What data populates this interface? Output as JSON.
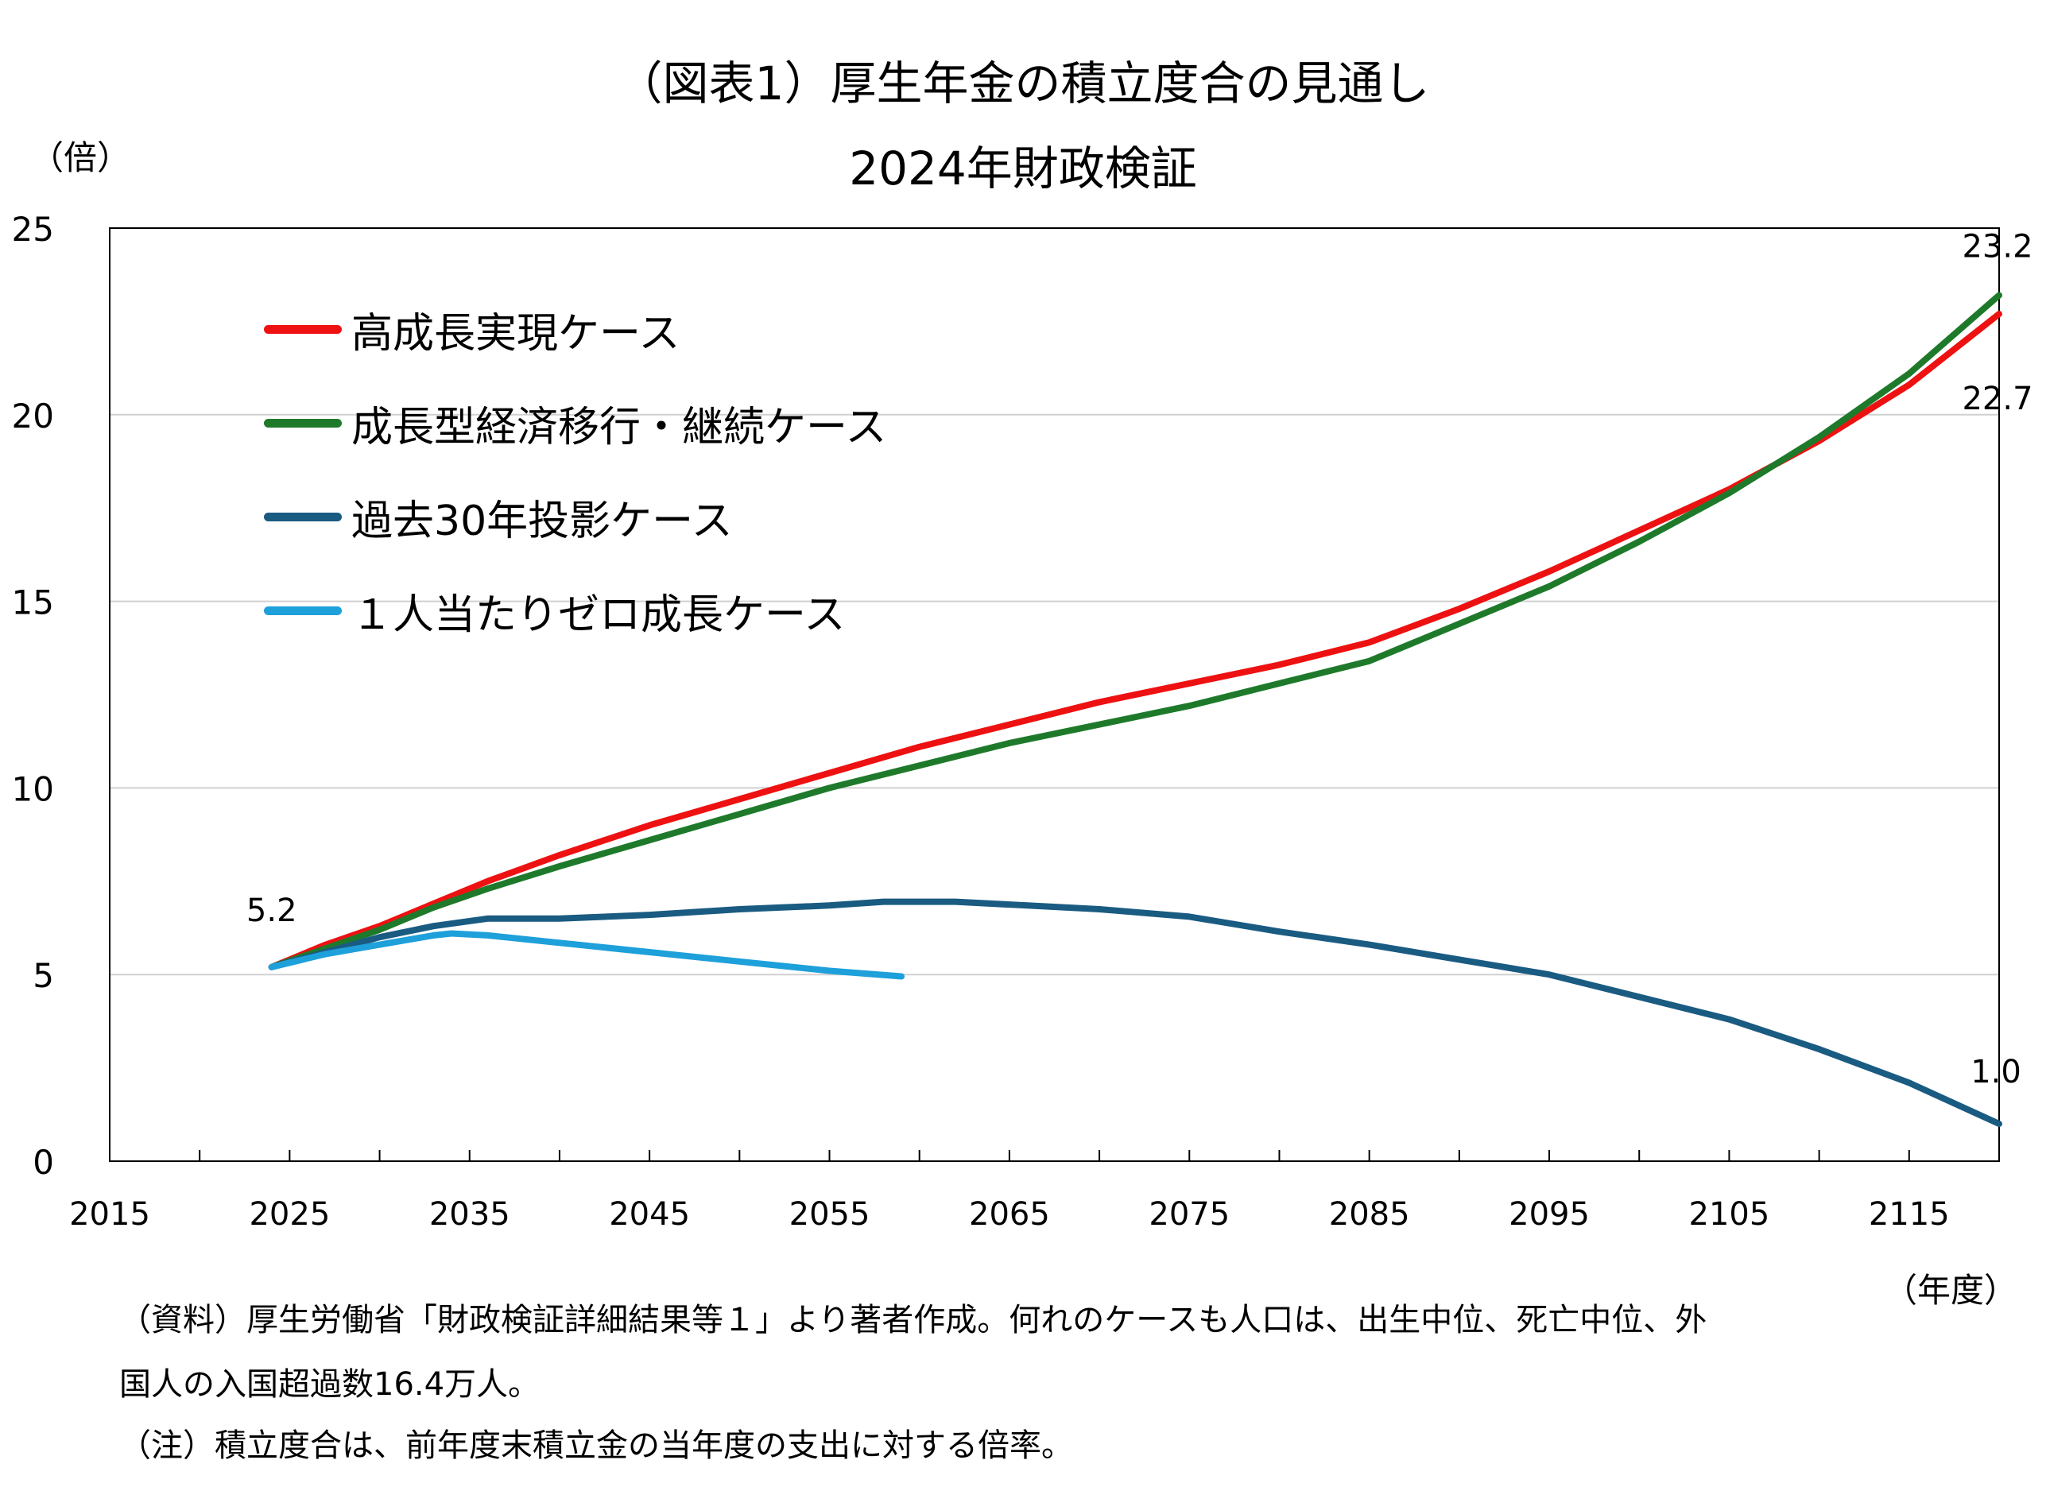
{
  "title": "（図表1）厚生年金の積立度合の見通し",
  "subtitle": "2024年財政検証",
  "y_unit": "（倍）",
  "x_unit": "（年度）",
  "notes": {
    "source_line1": "（資料）厚生労働省「財政検証詳細結果等１」より著者作成。何れのケースも人口は、出生中位、死亡中位、外",
    "source_line2": "国人の入国超過数16.4万人。",
    "note": "（注）積立度合は、前年度末積立金の当年度の支出に対する倍率。"
  },
  "chart_data": {
    "type": "line",
    "title": "（図表1）厚生年金の積立度合の見通し",
    "subtitle": "2024年財政検証",
    "xlabel": "（年度）",
    "ylabel": "（倍）",
    "xlim": [
      2015,
      2120
    ],
    "ylim": [
      0,
      25
    ],
    "x_ticks": [
      2015,
      2025,
      2035,
      2045,
      2055,
      2065,
      2075,
      2085,
      2095,
      2105,
      2115
    ],
    "y_ticks": [
      0,
      5,
      10,
      15,
      20,
      25
    ],
    "grid": true,
    "legend_position": "top-left",
    "series": [
      {
        "name": "高成長実現ケース",
        "color": "#ee1111",
        "x": [
          2024,
          2027,
          2030,
          2033,
          2036,
          2040,
          2045,
          2050,
          2055,
          2060,
          2065,
          2070,
          2075,
          2080,
          2085,
          2090,
          2095,
          2100,
          2105,
          2110,
          2115,
          2120
        ],
        "y": [
          5.2,
          5.8,
          6.3,
          6.9,
          7.5,
          8.2,
          9.0,
          9.7,
          10.4,
          11.1,
          11.7,
          12.3,
          12.8,
          13.3,
          13.9,
          14.8,
          15.8,
          16.9,
          18.0,
          19.3,
          20.8,
          22.7
        ]
      },
      {
        "name": "成長型経済移行・継続ケース",
        "color": "#1e7a2a",
        "x": [
          2024,
          2027,
          2030,
          2033,
          2036,
          2040,
          2045,
          2050,
          2055,
          2060,
          2065,
          2070,
          2075,
          2080,
          2085,
          2090,
          2095,
          2100,
          2105,
          2110,
          2115,
          2120
        ],
        "y": [
          5.2,
          5.7,
          6.2,
          6.8,
          7.3,
          7.9,
          8.6,
          9.3,
          10.0,
          10.6,
          11.2,
          11.7,
          12.2,
          12.8,
          13.4,
          14.4,
          15.4,
          16.6,
          17.9,
          19.4,
          21.1,
          23.2
        ]
      },
      {
        "name": "過去30年投影ケース",
        "color": "#1a5b82",
        "x": [
          2024,
          2027,
          2030,
          2033,
          2036,
          2040,
          2045,
          2050,
          2055,
          2058,
          2062,
          2066,
          2070,
          2075,
          2080,
          2085,
          2090,
          2095,
          2100,
          2105,
          2110,
          2115,
          2120
        ],
        "y": [
          5.2,
          5.6,
          6.0,
          6.3,
          6.5,
          6.5,
          6.6,
          6.75,
          6.85,
          6.95,
          6.95,
          6.85,
          6.75,
          6.55,
          6.15,
          5.8,
          5.4,
          5.0,
          4.4,
          3.8,
          3.0,
          2.1,
          1.0
        ]
      },
      {
        "name": "１人当たりゼロ成長ケース",
        "color": "#1ea0da",
        "x": [
          2024,
          2027,
          2030,
          2033,
          2034,
          2036,
          2040,
          2045,
          2050,
          2055,
          2059
        ],
        "y": [
          5.2,
          5.55,
          5.8,
          6.05,
          6.1,
          6.05,
          5.85,
          5.6,
          5.35,
          5.1,
          4.95
        ]
      }
    ],
    "annotations": [
      {
        "text": "5.2",
        "x": 2024,
        "y": 5.2
      },
      {
        "text": "23.2",
        "x": 2120,
        "y": 23.2
      },
      {
        "text": "22.7",
        "x": 2120,
        "y": 22.7
      },
      {
        "text": "1.0",
        "x": 2120,
        "y": 1.0
      }
    ]
  }
}
